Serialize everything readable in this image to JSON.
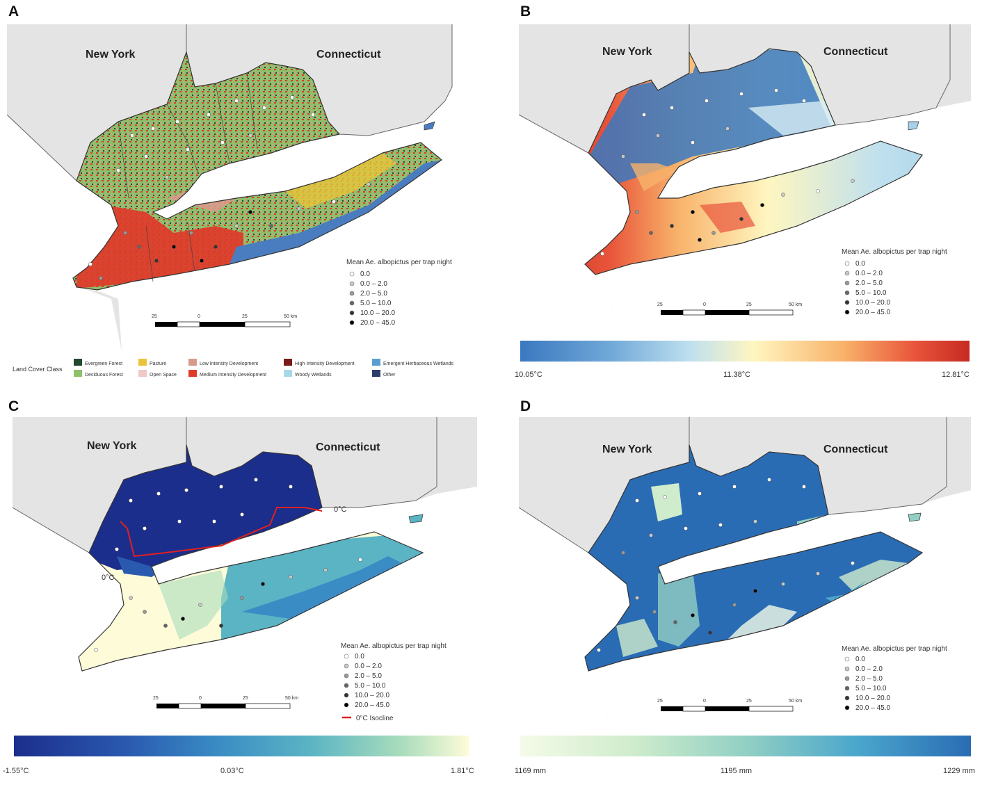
{
  "panels": [
    {
      "letter": "A",
      "state_left": "New York",
      "state_right": "Connecticut"
    },
    {
      "letter": "B",
      "state_left": "New York",
      "state_right": "Connecticut"
    },
    {
      "letter": "C",
      "state_left": "New York",
      "state_right": "Connecticut"
    },
    {
      "letter": "D",
      "state_left": "New York",
      "state_right": "Connecticut"
    }
  ],
  "legend": {
    "title": "Mean Ae. albopictus per trap night",
    "classes": [
      {
        "label": "0.0",
        "color": "#ffffff"
      },
      {
        "label": "0.0 – 2.0",
        "color": "#c8c8c8"
      },
      {
        "label": "2.0 – 5.0",
        "color": "#999999"
      },
      {
        "label": "5.0 – 10.0",
        "color": "#666666"
      },
      {
        "label": "10.0 – 20.0",
        "color": "#333333"
      },
      {
        "label": "20.0 – 45.0",
        "color": "#000000"
      }
    ]
  },
  "scalebar": {
    "labels": [
      "25",
      "0",
      "25",
      "50 km"
    ]
  },
  "landcover": {
    "title": "Land Cover Class",
    "classes": [
      {
        "label": "Evergreen Forest",
        "color": "#1f4a2e"
      },
      {
        "label": "Deciduous Forest",
        "color": "#8cc06a"
      },
      {
        "label": "Pasture",
        "color": "#e8c43a"
      },
      {
        "label": "Open Space",
        "color": "#f0c8c4"
      },
      {
        "label": "Low Intensity Development",
        "color": "#d99a8c"
      },
      {
        "label": "Medium Intensity Development",
        "color": "#e03a2a"
      },
      {
        "label": "High Intensity Development",
        "color": "#7a1a1a"
      },
      {
        "label": "Woody Wetlands",
        "color": "#a8d8e8"
      },
      {
        "label": "Emergent Herbaceous Wetlands",
        "color": "#5a9fd0"
      },
      {
        "label": "Other",
        "color": "#2c3e6a"
      }
    ]
  },
  "colorbars": {
    "B": {
      "min": "10.05°C",
      "mid": "11.38°C",
      "max": "12.81°C",
      "colors": [
        "#3a78c0",
        "#70a8d8",
        "#bfe0ee",
        "#fff6c0",
        "#f8b26a",
        "#e8543a",
        "#c62a22"
      ]
    },
    "C": {
      "min": "-1.55°C",
      "mid": "0.03°C",
      "max": "1.81°C",
      "colors": [
        "#1c2e8c",
        "#2a5ab0",
        "#3a8cc4",
        "#5ab4c4",
        "#a8dcbc",
        "#fefcd8"
      ]
    },
    "D": {
      "min": "1169 mm",
      "mid": "1195 mm",
      "max": "1229 mm",
      "colors": [
        "#f4fbe8",
        "#cfeccc",
        "#92d0c4",
        "#4aa6cc",
        "#2a6cb4"
      ]
    }
  },
  "isocline": {
    "label": "0°C Isocline",
    "line_label": "0°C",
    "color": "#e02020"
  }
}
